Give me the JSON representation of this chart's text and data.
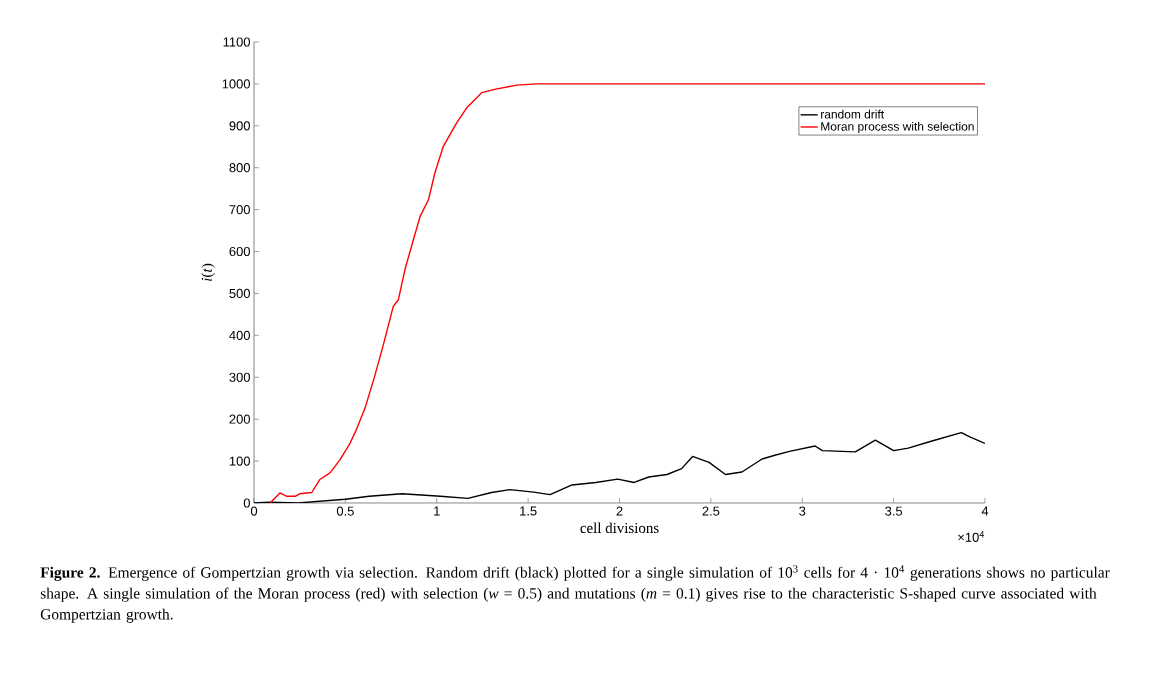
{
  "chart_data": {
    "type": "line",
    "xlabel": "cell divisions",
    "ylabel": "*i*(*t*)",
    "xlim": [
      0,
      4
    ],
    "ylim": [
      0,
      1100
    ],
    "xticks": [
      0,
      0.5,
      1,
      1.5,
      2,
      2.5,
      3,
      3.5,
      4
    ],
    "yticks": [
      0,
      100,
      200,
      300,
      400,
      500,
      600,
      700,
      800,
      900,
      1000,
      1100
    ],
    "legend": "top right",
    "series": [
      {
        "name": "random drift",
        "color": "#000000",
        "x": [
          0,
          0.083,
          0.24,
          0.5,
          0.63,
          0.81,
          1.02,
          1.17,
          1.3,
          1.4,
          1.53,
          1.62,
          1.74,
          1.87,
          1.99,
          2.08,
          2.16,
          2.26,
          2.34,
          2.4,
          2.49,
          2.58,
          2.67,
          2.78,
          2.85,
          2.93,
          3.07,
          3.11,
          3.29,
          3.4,
          3.5,
          3.58,
          3.71,
          3.87,
          3.92,
          4.0
        ],
        "values": [
          0,
          2,
          0,
          9,
          16,
          22,
          16,
          11,
          25,
          32,
          26,
          20,
          43,
          49,
          57,
          49,
          62,
          68,
          82,
          111,
          97,
          68,
          74,
          105,
          114,
          123,
          136,
          125,
          122,
          150,
          125,
          131,
          148,
          168,
          157,
          142
        ]
      },
      {
        "name": "Moran process with selection",
        "color": "#ff0000",
        "x": [
          0.088,
          0.142,
          0.18,
          0.225,
          0.25,
          0.316,
          0.36,
          0.416,
          0.47,
          0.526,
          0.56,
          0.608,
          0.66,
          0.708,
          0.762,
          0.79,
          0.826,
          0.872,
          0.909,
          0.955,
          0.99,
          1.036,
          1.109,
          1.164,
          1.246,
          1.328,
          1.438,
          1.547,
          4.0
        ],
        "values": [
          0,
          24,
          16,
          16,
          22,
          25,
          56,
          72,
          103,
          143,
          175,
          227,
          302,
          378,
          469,
          485,
          557,
          628,
          684,
          724,
          788,
          851,
          907,
          943,
          979,
          988,
          997,
          1000,
          1000
        ]
      }
    ],
    "annotations": [
      "×10$^{4}$",
      "**Figure 2.** Emergence of Gompertzian growth via selection. Random drift (black) plotted for a single simulation of 10$^{3}$ cells for 4 · 10$^{4}$ generations shows no particular shape. A single simulation of the Moran process (red) with selection (*w* = 0.5) and mutations (*m* = 0.1) gives rise to the characteristic S-shaped curve associated with Gompertzian growth."
    ]
  }
}
